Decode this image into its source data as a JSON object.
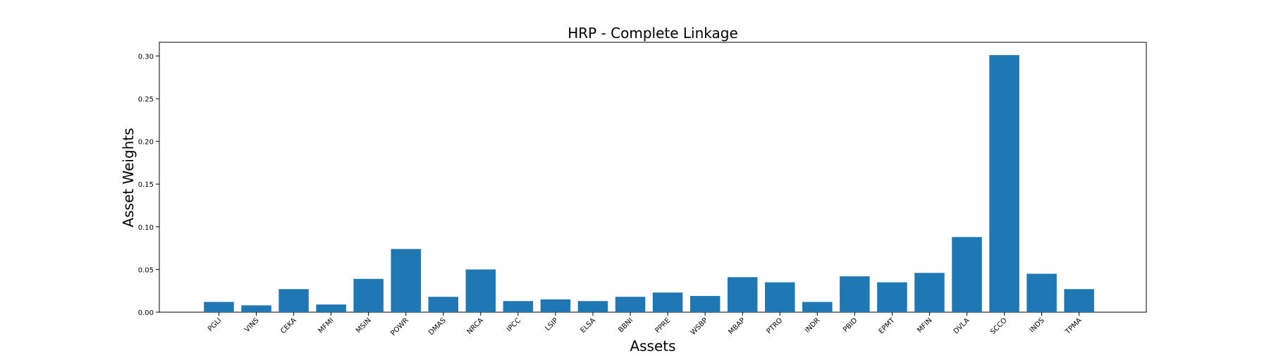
{
  "chart_data": {
    "type": "bar",
    "title": "HRP - Complete Linkage",
    "xlabel": "Assets",
    "ylabel": "Asset Weights",
    "categories": [
      "PGLI",
      "VINS",
      "CEKA",
      "MFMI",
      "MSIN",
      "POWR",
      "DMAS",
      "NRCA",
      "IPCC",
      "LSIP",
      "ELSA",
      "BBNI",
      "PPRE",
      "WSBP",
      "MBAP",
      "PTRO",
      "INDR",
      "PBID",
      "EPMT",
      "MFIN",
      "DVLA",
      "SCCO",
      "INDS",
      "TPMA"
    ],
    "values": [
      0.012,
      0.008,
      0.027,
      0.009,
      0.039,
      0.074,
      0.018,
      0.05,
      0.013,
      0.015,
      0.013,
      0.018,
      0.023,
      0.019,
      0.041,
      0.035,
      0.012,
      0.042,
      0.035,
      0.046,
      0.088,
      0.301,
      0.045,
      0.027
    ],
    "ylim": [
      0,
      0.316
    ],
    "yticks": [
      "0.00",
      "0.05",
      "0.10",
      "0.15",
      "0.20",
      "0.25",
      "0.30"
    ],
    "bar_color": "#1f77b4",
    "grid": false,
    "legend": false
  }
}
